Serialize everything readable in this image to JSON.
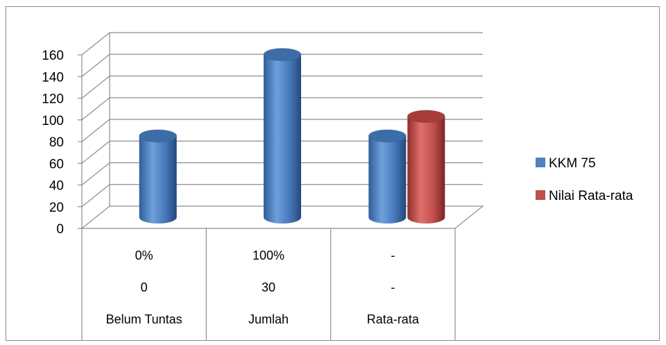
{
  "chart_data": {
    "type": "bar",
    "categories": [
      "Belum Tuntas",
      "Jumlah",
      "Rata-rata"
    ],
    "series": [
      {
        "name": "KKM 75",
        "values": [
          75,
          150,
          75
        ],
        "color": "#4f81bd"
      },
      {
        "name": "Nilai Rata-rata",
        "values": [
          null,
          null,
          93
        ],
        "color": "#c0504d"
      }
    ],
    "table_rows": [
      [
        "0%",
        "100%",
        "-"
      ],
      [
        "0",
        "30",
        "-"
      ],
      [
        "Belum Tuntas",
        "Jumlah",
        "Rata-rata"
      ]
    ],
    "yticks": [
      "0",
      "20",
      "40",
      "60",
      "80",
      "100",
      "120",
      "140",
      "160"
    ],
    "ylim": [
      0,
      160
    ],
    "grid": true,
    "legend_position": "right",
    "style": "3d-cylinder"
  }
}
